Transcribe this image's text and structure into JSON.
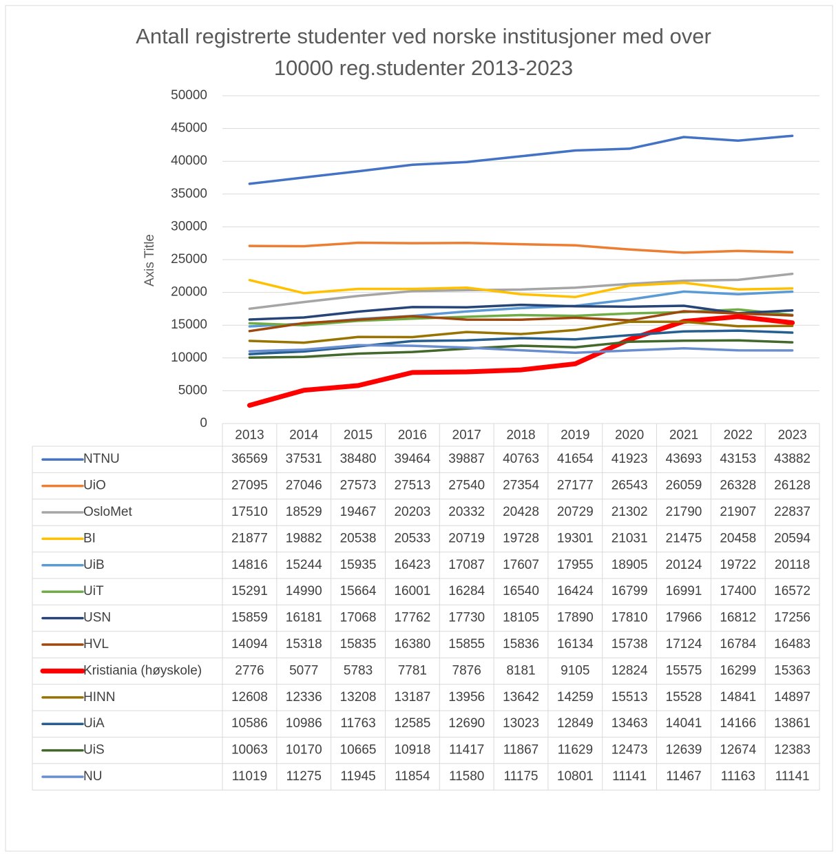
{
  "chart_data": {
    "type": "line",
    "title": "Antall registrerte studenter ved norske institusjoner med over 10000 reg.studenter 2013-2023",
    "y_axis_title": "Axis Title",
    "categories": [
      "2013",
      "2014",
      "2015",
      "2016",
      "2017",
      "2018",
      "2019",
      "2020",
      "2021",
      "2022",
      "2023"
    ],
    "ylim": [
      0,
      50000
    ],
    "yticks": [
      0,
      5000,
      10000,
      15000,
      20000,
      25000,
      30000,
      35000,
      40000,
      45000,
      50000
    ],
    "grid": true,
    "legend": "table",
    "series": [
      {
        "name": "NTNU",
        "color": "#4472c4",
        "line_width": 3.5,
        "values": [
          36569,
          37531,
          38480,
          39464,
          39887,
          40763,
          41654,
          41923,
          43693,
          43153,
          43882
        ]
      },
      {
        "name": "UiO",
        "color": "#ed7d31",
        "line_width": 3.5,
        "values": [
          27095,
          27046,
          27573,
          27513,
          27540,
          27354,
          27177,
          26543,
          26059,
          26328,
          26128
        ]
      },
      {
        "name": "OsloMet",
        "color": "#a5a5a5",
        "line_width": 3.5,
        "values": [
          17510,
          18529,
          19467,
          20203,
          20332,
          20428,
          20729,
          21302,
          21790,
          21907,
          22837
        ]
      },
      {
        "name": "BI",
        "color": "#ffc000",
        "line_width": 3.5,
        "values": [
          21877,
          19882,
          20538,
          20533,
          20719,
          19728,
          19301,
          21031,
          21475,
          20458,
          20594
        ]
      },
      {
        "name": "UiB",
        "color": "#5b9bd5",
        "line_width": 3.5,
        "values": [
          14816,
          15244,
          15935,
          16423,
          17087,
          17607,
          17955,
          18905,
          20124,
          19722,
          20118
        ]
      },
      {
        "name": "UiT",
        "color": "#70ad47",
        "line_width": 3.5,
        "values": [
          15291,
          14990,
          15664,
          16001,
          16284,
          16540,
          16424,
          16799,
          16991,
          17400,
          16572
        ]
      },
      {
        "name": "USN",
        "color": "#264478",
        "line_width": 3.5,
        "values": [
          15859,
          16181,
          17068,
          17762,
          17730,
          18105,
          17890,
          17810,
          17966,
          16812,
          17256
        ]
      },
      {
        "name": "HVL",
        "color": "#9e480e",
        "line_width": 3.5,
        "values": [
          14094,
          15318,
          15835,
          16380,
          15855,
          15836,
          16134,
          15738,
          17124,
          16784,
          16483
        ]
      },
      {
        "name": "Kristiania (høyskole)",
        "color": "#ff0000",
        "line_width": 7,
        "values": [
          2776,
          5077,
          5783,
          7781,
          7876,
          8181,
          9105,
          12824,
          15575,
          16299,
          15363
        ]
      },
      {
        "name": "HINN",
        "color": "#997300",
        "line_width": 3.5,
        "values": [
          12608,
          12336,
          13208,
          13187,
          13956,
          13642,
          14259,
          15513,
          15528,
          14841,
          14897
        ]
      },
      {
        "name": "UiA",
        "color": "#255e91",
        "line_width": 3.5,
        "values": [
          10586,
          10986,
          11763,
          12585,
          12690,
          13023,
          12849,
          13463,
          14041,
          14166,
          13861
        ]
      },
      {
        "name": "UiS",
        "color": "#43682b",
        "line_width": 3.5,
        "values": [
          10063,
          10170,
          10665,
          10918,
          11417,
          11867,
          11629,
          12473,
          12639,
          12674,
          12383
        ]
      },
      {
        "name": "NU",
        "color": "#698ed0",
        "line_width": 3.5,
        "values": [
          11019,
          11275,
          11945,
          11854,
          11580,
          11175,
          10801,
          11141,
          11467,
          11163,
          11141
        ]
      }
    ]
  }
}
